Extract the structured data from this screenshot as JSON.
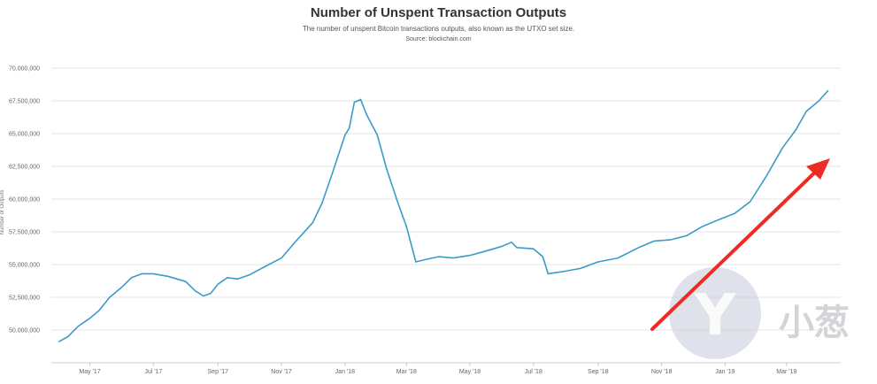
{
  "chart_data": {
    "type": "line",
    "title": "Number of Unspent Transaction Outputs",
    "subtitle": "The number of unspent Bitcoin transactions outputs, also known as the UTXO set size.",
    "source": "Source: blockchain.com",
    "ylabel": "Number of Outputs",
    "xlabel": "",
    "ylim": [
      47500000,
      70000000
    ],
    "grid": true,
    "legend": "none",
    "line_color": "#3a9bc8",
    "y_ticks": [
      {
        "value": 50000000,
        "label": "50,000,000"
      },
      {
        "value": 52500000,
        "label": "52,500,000"
      },
      {
        "value": 55000000,
        "label": "55,000,000"
      },
      {
        "value": 57500000,
        "label": "57,500,000"
      },
      {
        "value": 60000000,
        "label": "60,000,000"
      },
      {
        "value": 62500000,
        "label": "62,500,000"
      },
      {
        "value": 65000000,
        "label": "65,000,000"
      },
      {
        "value": 67500000,
        "label": "67,500,000"
      },
      {
        "value": 70000000,
        "label": "70,000,000"
      }
    ],
    "x_ticks": [
      {
        "value": "2017-05-01",
        "label": "May '17"
      },
      {
        "value": "2017-07-01",
        "label": "Jul '17"
      },
      {
        "value": "2017-09-01",
        "label": "Sep '17"
      },
      {
        "value": "2017-11-01",
        "label": "Nov '17"
      },
      {
        "value": "2018-01-01",
        "label": "Jan '18"
      },
      {
        "value": "2018-03-01",
        "label": "Mar '18"
      },
      {
        "value": "2018-05-01",
        "label": "May '18"
      },
      {
        "value": "2018-07-01",
        "label": "Jul '18"
      },
      {
        "value": "2018-09-01",
        "label": "Sep '18"
      },
      {
        "value": "2018-11-01",
        "label": "Nov '18"
      },
      {
        "value": "2019-01-01",
        "label": "Jan '19"
      },
      {
        "value": "2019-03-01",
        "label": "Mar '19"
      }
    ],
    "series": [
      {
        "values": [
          [
            "2017-04-01",
            49100000
          ],
          [
            "2017-04-10",
            49500000
          ],
          [
            "2017-04-20",
            50300000
          ],
          [
            "2017-05-01",
            50900000
          ],
          [
            "2017-05-10",
            51500000
          ],
          [
            "2017-05-20",
            52500000
          ],
          [
            "2017-06-01",
            53300000
          ],
          [
            "2017-06-10",
            54000000
          ],
          [
            "2017-06-20",
            54300000
          ],
          [
            "2017-07-01",
            54300000
          ],
          [
            "2017-07-15",
            54100000
          ],
          [
            "2017-08-01",
            53700000
          ],
          [
            "2017-08-10",
            53000000
          ],
          [
            "2017-08-18",
            52600000
          ],
          [
            "2017-08-25",
            52800000
          ],
          [
            "2017-09-01",
            53500000
          ],
          [
            "2017-09-10",
            54000000
          ],
          [
            "2017-09-20",
            53900000
          ],
          [
            "2017-10-01",
            54200000
          ],
          [
            "2017-10-15",
            54800000
          ],
          [
            "2017-11-01",
            55500000
          ],
          [
            "2017-11-15",
            56800000
          ],
          [
            "2017-12-01",
            58200000
          ],
          [
            "2017-12-10",
            59700000
          ],
          [
            "2017-12-20",
            62000000
          ],
          [
            "2018-01-01",
            64900000
          ],
          [
            "2018-01-05",
            65400000
          ],
          [
            "2018-01-10",
            67400000
          ],
          [
            "2018-01-16",
            67600000
          ],
          [
            "2018-01-22",
            66400000
          ],
          [
            "2018-02-01",
            64900000
          ],
          [
            "2018-02-10",
            62300000
          ],
          [
            "2018-02-20",
            59900000
          ],
          [
            "2018-03-01",
            57900000
          ],
          [
            "2018-03-10",
            55200000
          ],
          [
            "2018-03-20",
            55400000
          ],
          [
            "2018-04-01",
            55600000
          ],
          [
            "2018-04-15",
            55500000
          ],
          [
            "2018-05-01",
            55700000
          ],
          [
            "2018-05-15",
            56000000
          ],
          [
            "2018-06-01",
            56400000
          ],
          [
            "2018-06-10",
            56700000
          ],
          [
            "2018-06-15",
            56300000
          ],
          [
            "2018-07-01",
            56200000
          ],
          [
            "2018-07-10",
            55600000
          ],
          [
            "2018-07-15",
            54300000
          ],
          [
            "2018-08-01",
            54500000
          ],
          [
            "2018-08-15",
            54700000
          ],
          [
            "2018-09-01",
            55200000
          ],
          [
            "2018-09-20",
            55500000
          ],
          [
            "2018-10-10",
            56300000
          ],
          [
            "2018-10-25",
            56800000
          ],
          [
            "2018-11-10",
            56900000
          ],
          [
            "2018-11-25",
            57200000
          ],
          [
            "2018-12-10",
            57900000
          ],
          [
            "2018-12-25",
            58400000
          ],
          [
            "2019-01-10",
            58900000
          ],
          [
            "2019-01-25",
            59800000
          ],
          [
            "2019-02-10",
            61800000
          ],
          [
            "2019-02-25",
            63900000
          ],
          [
            "2019-03-10",
            65300000
          ],
          [
            "2019-03-20",
            66700000
          ],
          [
            "2019-04-01",
            67500000
          ],
          [
            "2019-04-10",
            68300000
          ]
        ]
      }
    ]
  },
  "watermark": {
    "text": "小葱",
    "logo_letter": "Y"
  }
}
